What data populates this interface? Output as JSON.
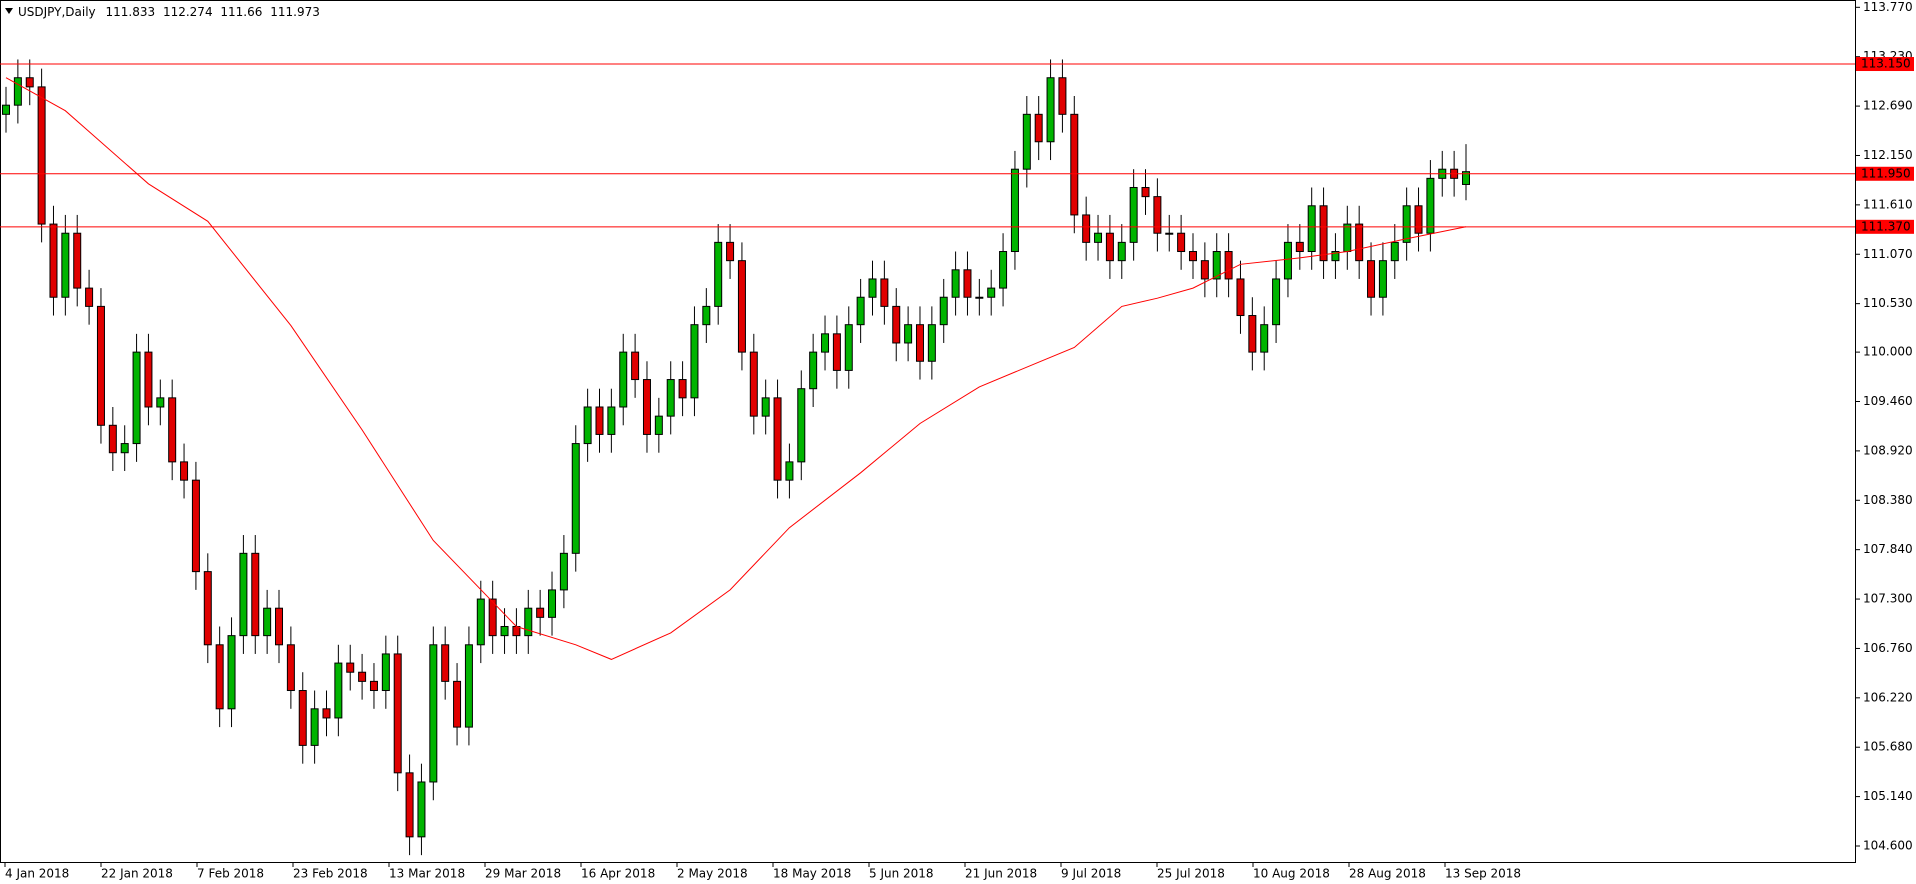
{
  "chart_data": {
    "type": "candlestick",
    "symbol": "USDJPY,Daily",
    "up_color": "#00b400",
    "down_color": "#e00000",
    "level_color": "#ff0000",
    "ma_color": "#ff0000",
    "ylim": [
      104.425,
      113.85
    ],
    "yticks": [
      {
        "value": 113.77,
        "label": "113.770"
      },
      {
        "value": 113.23,
        "label": "113.230"
      },
      {
        "value": 112.69,
        "label": "112.690"
      },
      {
        "value": 112.15,
        "label": "112.150"
      },
      {
        "value": 111.61,
        "label": "111.610"
      },
      {
        "value": 111.07,
        "label": "111.070"
      },
      {
        "value": 110.53,
        "label": "110.530"
      },
      {
        "value": 110.0,
        "label": "110.000"
      },
      {
        "value": 109.46,
        "label": "109.460"
      },
      {
        "value": 108.92,
        "label": "108.920"
      },
      {
        "value": 108.38,
        "label": "108.380"
      },
      {
        "value": 107.84,
        "label": "107.840"
      },
      {
        "value": 107.3,
        "label": "107.300"
      },
      {
        "value": 106.76,
        "label": "106.760"
      },
      {
        "value": 106.22,
        "label": "106.220"
      },
      {
        "value": 105.68,
        "label": "105.680"
      },
      {
        "value": 105.14,
        "label": "105.140"
      },
      {
        "value": 104.6,
        "label": "104.600"
      }
    ],
    "levels": [
      {
        "value": 113.15,
        "label": "113.150"
      },
      {
        "value": 111.95,
        "label": "111.950"
      },
      {
        "value": 111.37,
        "label": "111.370"
      }
    ],
    "date_labels": [
      "4 Jan 2018",
      "22 Jan 2018",
      "7 Feb 2018",
      "23 Feb 2018",
      "13 Mar 2018",
      "29 Mar 2018",
      "16 Apr 2018",
      "2 May 2018",
      "18 May 2018",
      "5 Jun 2018",
      "21 Jun 2018",
      "9 Jul 2018",
      "25 Jul 2018",
      "10 Aug 2018",
      "28 Aug 2018",
      "13 Sep 2018"
    ],
    "candles": [
      [
        112.6,
        112.9,
        112.4,
        112.7
      ],
      [
        112.7,
        113.2,
        112.5,
        113.0
      ],
      [
        113.0,
        113.2,
        112.7,
        112.9
      ],
      [
        112.9,
        113.1,
        111.2,
        111.4
      ],
      [
        111.4,
        111.6,
        110.4,
        110.6
      ],
      [
        110.6,
        111.5,
        110.4,
        111.3
      ],
      [
        111.3,
        111.5,
        110.5,
        110.7
      ],
      [
        110.7,
        110.9,
        110.3,
        110.5
      ],
      [
        110.5,
        110.7,
        109.0,
        109.2
      ],
      [
        109.2,
        109.4,
        108.7,
        108.9
      ],
      [
        108.9,
        109.2,
        108.7,
        109.0
      ],
      [
        109.0,
        110.2,
        108.8,
        110.0
      ],
      [
        110.0,
        110.2,
        109.2,
        109.4
      ],
      [
        109.4,
        109.7,
        109.2,
        109.5
      ],
      [
        109.5,
        109.7,
        108.6,
        108.8
      ],
      [
        108.8,
        109.0,
        108.4,
        108.6
      ],
      [
        108.6,
        108.8,
        107.4,
        107.6
      ],
      [
        107.6,
        107.8,
        106.6,
        106.8
      ],
      [
        106.8,
        107.0,
        105.9,
        106.1
      ],
      [
        106.1,
        107.1,
        105.9,
        106.9
      ],
      [
        106.9,
        108.0,
        106.7,
        107.8
      ],
      [
        107.8,
        108.0,
        106.7,
        106.9
      ],
      [
        106.9,
        107.4,
        106.7,
        107.2
      ],
      [
        107.2,
        107.4,
        106.6,
        106.8
      ],
      [
        106.8,
        107.0,
        106.1,
        106.3
      ],
      [
        106.3,
        106.5,
        105.5,
        105.7
      ],
      [
        105.7,
        106.3,
        105.5,
        106.1
      ],
      [
        106.1,
        106.3,
        105.8,
        106.0
      ],
      [
        106.0,
        106.8,
        105.8,
        106.6
      ],
      [
        106.6,
        106.8,
        106.3,
        106.5
      ],
      [
        106.5,
        106.7,
        106.2,
        106.4
      ],
      [
        106.4,
        106.6,
        106.1,
        106.3
      ],
      [
        106.3,
        106.9,
        106.1,
        106.7
      ],
      [
        106.7,
        106.9,
        105.2,
        105.4
      ],
      [
        105.4,
        105.6,
        104.5,
        104.7
      ],
      [
        104.7,
        105.5,
        104.5,
        105.3
      ],
      [
        105.3,
        107.0,
        105.1,
        106.8
      ],
      [
        106.8,
        107.0,
        106.2,
        106.4
      ],
      [
        106.4,
        106.6,
        105.7,
        105.9
      ],
      [
        105.9,
        107.0,
        105.7,
        106.8
      ],
      [
        106.8,
        107.5,
        106.6,
        107.3
      ],
      [
        107.3,
        107.5,
        106.7,
        106.9
      ],
      [
        106.9,
        107.2,
        106.7,
        107.0
      ],
      [
        107.0,
        107.2,
        106.7,
        106.9
      ],
      [
        106.9,
        107.4,
        106.7,
        107.2
      ],
      [
        107.2,
        107.4,
        106.9,
        107.1
      ],
      [
        107.1,
        107.6,
        106.9,
        107.4
      ],
      [
        107.4,
        108.0,
        107.2,
        107.8
      ],
      [
        107.8,
        109.2,
        107.6,
        109.0
      ],
      [
        109.0,
        109.6,
        108.8,
        109.4
      ],
      [
        109.4,
        109.6,
        108.9,
        109.1
      ],
      [
        109.1,
        109.6,
        108.9,
        109.4
      ],
      [
        109.4,
        110.2,
        109.2,
        110.0
      ],
      [
        110.0,
        110.2,
        109.5,
        109.7
      ],
      [
        109.7,
        109.9,
        108.9,
        109.1
      ],
      [
        109.1,
        109.5,
        108.9,
        109.3
      ],
      [
        109.3,
        109.9,
        109.1,
        109.7
      ],
      [
        109.7,
        109.9,
        109.3,
        109.5
      ],
      [
        109.5,
        110.5,
        109.3,
        110.3
      ],
      [
        110.3,
        110.7,
        110.1,
        110.5
      ],
      [
        110.5,
        111.4,
        110.3,
        111.2
      ],
      [
        111.2,
        111.4,
        110.8,
        111.0
      ],
      [
        111.0,
        111.2,
        109.8,
        110.0
      ],
      [
        110.0,
        110.2,
        109.1,
        109.3
      ],
      [
        109.3,
        109.7,
        109.1,
        109.5
      ],
      [
        109.5,
        109.7,
        108.4,
        108.6
      ],
      [
        108.6,
        109.0,
        108.4,
        108.8
      ],
      [
        108.8,
        109.8,
        108.6,
        109.6
      ],
      [
        109.6,
        110.2,
        109.4,
        110.0
      ],
      [
        110.0,
        110.4,
        109.8,
        110.2
      ],
      [
        110.2,
        110.4,
        109.6,
        109.8
      ],
      [
        109.8,
        110.5,
        109.6,
        110.3
      ],
      [
        110.3,
        110.8,
        110.1,
        110.6
      ],
      [
        110.6,
        111.0,
        110.4,
        110.8
      ],
      [
        110.8,
        111.0,
        110.3,
        110.5
      ],
      [
        110.5,
        110.7,
        109.9,
        110.1
      ],
      [
        110.1,
        110.5,
        109.9,
        110.3
      ],
      [
        110.3,
        110.5,
        109.7,
        109.9
      ],
      [
        109.9,
        110.5,
        109.7,
        110.3
      ],
      [
        110.3,
        110.8,
        110.1,
        110.6
      ],
      [
        110.6,
        111.1,
        110.4,
        110.9
      ],
      [
        110.9,
        111.1,
        110.4,
        110.6
      ],
      [
        110.6,
        110.8,
        110.4,
        110.6
      ],
      [
        110.6,
        110.9,
        110.4,
        110.7
      ],
      [
        110.7,
        111.3,
        110.5,
        111.1
      ],
      [
        111.1,
        112.2,
        110.9,
        112.0
      ],
      [
        112.0,
        112.8,
        111.8,
        112.6
      ],
      [
        112.6,
        112.8,
        112.1,
        112.3
      ],
      [
        112.3,
        113.2,
        112.1,
        113.0
      ],
      [
        113.0,
        113.2,
        112.4,
        112.6
      ],
      [
        112.6,
        112.8,
        111.3,
        111.5
      ],
      [
        111.5,
        111.7,
        111.0,
        111.2
      ],
      [
        111.2,
        111.5,
        111.0,
        111.3
      ],
      [
        111.3,
        111.5,
        110.8,
        111.0
      ],
      [
        111.0,
        111.4,
        110.8,
        111.2
      ],
      [
        111.2,
        112.0,
        111.0,
        111.8
      ],
      [
        111.8,
        112.0,
        111.5,
        111.7
      ],
      [
        111.7,
        111.9,
        111.1,
        111.3
      ],
      [
        111.3,
        111.5,
        111.1,
        111.3
      ],
      [
        111.3,
        111.5,
        110.9,
        111.1
      ],
      [
        111.1,
        111.3,
        110.8,
        111.0
      ],
      [
        111.0,
        111.2,
        110.6,
        110.8
      ],
      [
        110.8,
        111.3,
        110.6,
        111.1
      ],
      [
        111.1,
        111.3,
        110.6,
        110.8
      ],
      [
        110.8,
        111.0,
        110.2,
        110.4
      ],
      [
        110.4,
        110.6,
        109.8,
        110.0
      ],
      [
        110.0,
        110.5,
        109.8,
        110.3
      ],
      [
        110.3,
        111.0,
        110.1,
        110.8
      ],
      [
        110.8,
        111.4,
        110.6,
        111.2
      ],
      [
        111.2,
        111.4,
        110.9,
        111.1
      ],
      [
        111.1,
        111.8,
        110.9,
        111.6
      ],
      [
        111.6,
        111.8,
        110.8,
        111.0
      ],
      [
        111.0,
        111.3,
        110.8,
        111.1
      ],
      [
        111.1,
        111.6,
        110.9,
        111.4
      ],
      [
        111.4,
        111.6,
        110.8,
        111.0
      ],
      [
        111.0,
        111.2,
        110.4,
        110.6
      ],
      [
        110.6,
        111.2,
        110.4,
        111.0
      ],
      [
        111.0,
        111.4,
        110.8,
        111.2
      ],
      [
        111.2,
        111.8,
        111.0,
        111.6
      ],
      [
        111.6,
        111.8,
        111.1,
        111.3
      ],
      [
        111.3,
        112.1,
        111.1,
        111.9
      ],
      [
        111.9,
        112.2,
        111.7,
        112.0
      ],
      [
        112.0,
        112.2,
        111.7,
        111.9
      ],
      [
        111.833,
        112.274,
        111.66,
        111.973
      ]
    ],
    "ma": {
      "x": [
        0,
        5,
        12,
        17,
        24,
        30,
        36,
        43,
        48,
        51,
        56,
        61,
        66,
        72,
        77,
        82,
        87,
        90,
        94,
        97,
        100,
        104,
        109,
        113,
        118,
        123
      ],
      "values": [
        113.0,
        112.64,
        111.84,
        111.43,
        110.29,
        109.15,
        107.94,
        107.0,
        106.8,
        106.64,
        106.93,
        107.4,
        108.08,
        108.68,
        109.22,
        109.62,
        109.89,
        110.05,
        110.5,
        110.59,
        110.7,
        110.96,
        111.03,
        111.1,
        111.24,
        111.37
      ]
    }
  }
}
